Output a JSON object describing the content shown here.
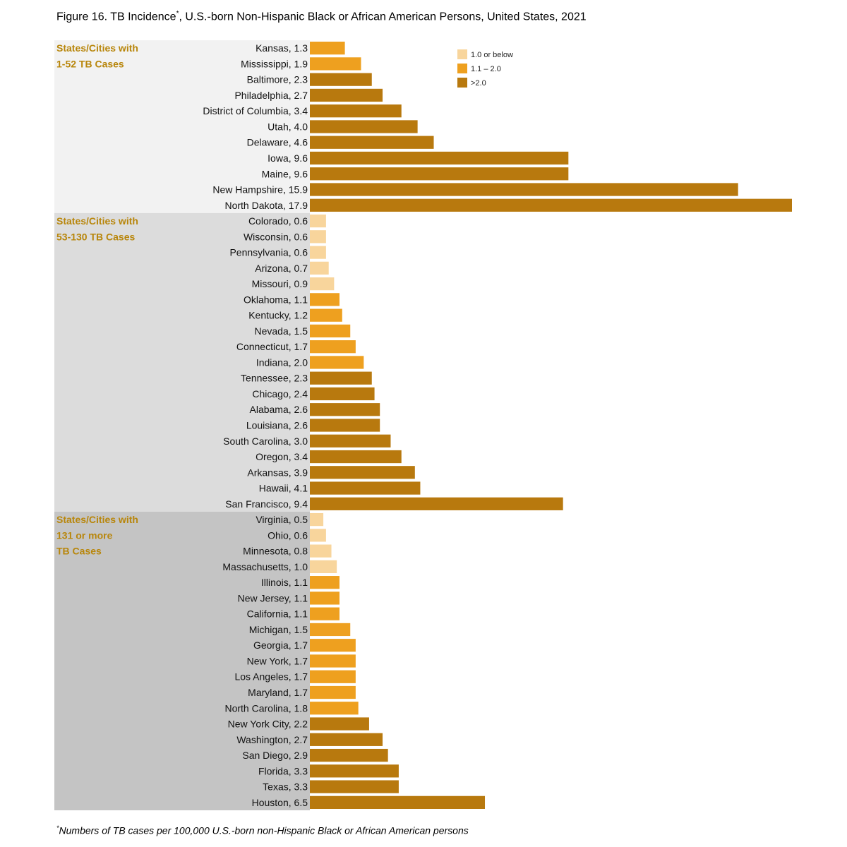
{
  "figure": {
    "title_prefix": "Figure 16. TB Incidence",
    "title_marker": "*",
    "title_suffix": ", U.S.-born Non-Hispanic Black or African American Persons, United States, 2021",
    "footnote_marker": "*",
    "footnote": "Numbers of TB cases per 100,000 U.S.-born non-Hispanic Black or African American persons"
  },
  "legend": [
    {
      "label": "1.0 or below",
      "color": "#f8d59c"
    },
    {
      "label": "1.1 – 2.0",
      "color": "#eea01f"
    },
    {
      "label": ">2.0",
      "color": "#b8790e"
    }
  ],
  "chart_data": {
    "type": "bar",
    "orientation": "horizontal",
    "title": "Figure 16. TB Incidence*, U.S.-born Non-Hispanic Black or African American Persons, United States, 2021",
    "xlabel": "",
    "ylabel": "",
    "xlim": [
      0,
      17.9
    ],
    "grid": false,
    "legend_position": "top-right",
    "groups": [
      {
        "label_lines": [
          "States/Cities with",
          "1-52 TB Cases"
        ],
        "background": "#f2f2f2",
        "bars": [
          {
            "label": "Kansas, 1.3",
            "value": 1.3
          },
          {
            "label": "Mississippi, 1.9",
            "value": 1.9
          },
          {
            "label": "Baltimore, 2.3",
            "value": 2.3
          },
          {
            "label": "Philadelphia, 2.7",
            "value": 2.7
          },
          {
            "label": "District of Columbia, 3.4",
            "value": 3.4
          },
          {
            "label": "Utah, 4.0",
            "value": 4.0
          },
          {
            "label": "Delaware, 4.6",
            "value": 4.6
          },
          {
            "label": "Iowa, 9.6",
            "value": 9.6
          },
          {
            "label": "Maine, 9.6",
            "value": 9.6
          },
          {
            "label": "New Hampshire, 15.9",
            "value": 15.9
          },
          {
            "label": "North Dakota, 17.9",
            "value": 17.9
          }
        ]
      },
      {
        "label_lines": [
          "States/Cities with",
          "53-130 TB Cases"
        ],
        "background": "#dcdcdc",
        "bars": [
          {
            "label": "Colorado, 0.6",
            "value": 0.6
          },
          {
            "label": "Wisconsin, 0.6",
            "value": 0.6
          },
          {
            "label": "Pennsylvania, 0.6",
            "value": 0.6
          },
          {
            "label": "Arizona, 0.7",
            "value": 0.7
          },
          {
            "label": "Missouri, 0.9",
            "value": 0.9
          },
          {
            "label": "Oklahoma, 1.1",
            "value": 1.1
          },
          {
            "label": "Kentucky, 1.2",
            "value": 1.2
          },
          {
            "label": "Nevada, 1.5",
            "value": 1.5
          },
          {
            "label": "Connecticut, 1.7",
            "value": 1.7
          },
          {
            "label": "Indiana, 2.0",
            "value": 2.0
          },
          {
            "label": "Tennessee, 2.3",
            "value": 2.3
          },
          {
            "label": "Chicago, 2.4",
            "value": 2.4
          },
          {
            "label": "Alabama, 2.6",
            "value": 2.6
          },
          {
            "label": "Louisiana, 2.6",
            "value": 2.6
          },
          {
            "label": "South Carolina, 3.0",
            "value": 3.0
          },
          {
            "label": "Oregon, 3.4",
            "value": 3.4
          },
          {
            "label": "Arkansas, 3.9",
            "value": 3.9
          },
          {
            "label": "Hawaii, 4.1",
            "value": 4.1
          },
          {
            "label": "San Francisco, 9.4",
            "value": 9.4
          }
        ]
      },
      {
        "label_lines": [
          "States/Cities with",
          "131 or more",
          "TB Cases"
        ],
        "background": "#c4c4c4",
        "bars": [
          {
            "label": "Virginia, 0.5",
            "value": 0.5
          },
          {
            "label": "Ohio, 0.6",
            "value": 0.6
          },
          {
            "label": "Minnesota, 0.8",
            "value": 0.8
          },
          {
            "label": "Massachusetts, 1.0",
            "value": 1.0
          },
          {
            "label": "Illinois, 1.1",
            "value": 1.1
          },
          {
            "label": "New Jersey, 1.1",
            "value": 1.1
          },
          {
            "label": "California, 1.1",
            "value": 1.1
          },
          {
            "label": "Michigan, 1.5",
            "value": 1.5
          },
          {
            "label": "Georgia, 1.7",
            "value": 1.7
          },
          {
            "label": "New York, 1.7",
            "value": 1.7
          },
          {
            "label": "Los Angeles, 1.7",
            "value": 1.7
          },
          {
            "label": "Maryland, 1.7",
            "value": 1.7
          },
          {
            "label": "North Carolina, 1.8",
            "value": 1.8
          },
          {
            "label": "New York City, 2.2",
            "value": 2.2
          },
          {
            "label": "Washington, 2.7",
            "value": 2.7
          },
          {
            "label": "San Diego, 2.9",
            "value": 2.9
          },
          {
            "label": "Florida, 3.3",
            "value": 3.3
          },
          {
            "label": "Texas, 3.3",
            "value": 3.3
          },
          {
            "label": "Houston, 6.5",
            "value": 6.5
          }
        ]
      }
    ]
  }
}
